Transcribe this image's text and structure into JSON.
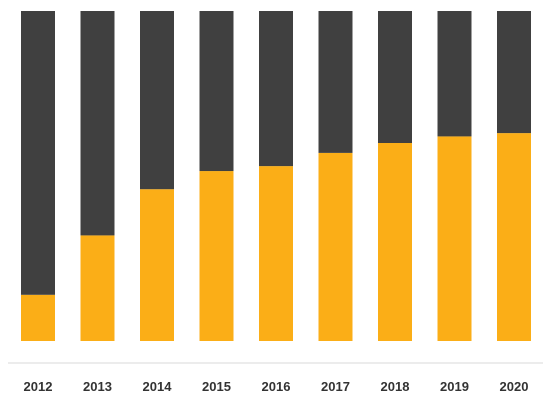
{
  "chart_data": {
    "type": "bar",
    "stacked": true,
    "normalized": true,
    "title": "",
    "xlabel": "",
    "ylabel": "",
    "ylim": [
      0,
      100
    ],
    "grid": false,
    "legend": "none",
    "categories": [
      "2012",
      "2013",
      "2014",
      "2015",
      "2016",
      "2017",
      "2018",
      "2019",
      "2020"
    ],
    "series": [
      {
        "color": "#FBAE17",
        "values": [
          14,
          32,
          46,
          51.5,
          53,
          57,
          60,
          62,
          63
        ]
      },
      {
        "color": "#404040",
        "values": [
          86,
          68,
          54,
          48.5,
          47,
          43,
          40,
          38,
          37
        ]
      }
    ],
    "axis_color": "#D9D9D9"
  }
}
